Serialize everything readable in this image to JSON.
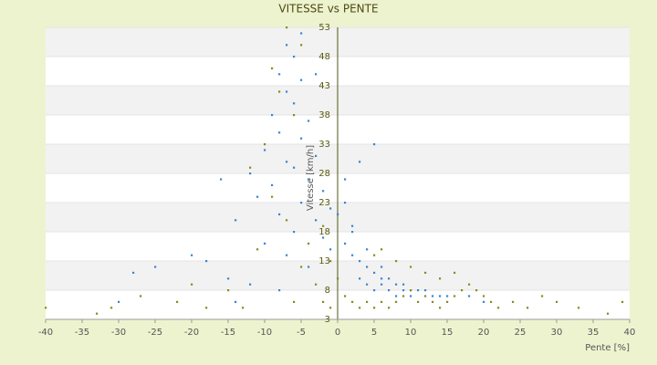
{
  "chart_data": {
    "type": "scatter",
    "title": "VITESSE vs PENTE",
    "x_label": "Pente [%]",
    "y_label": "Vitesse [km/h]",
    "xlim": [
      -40,
      40
    ],
    "xticks": [
      -40,
      -35,
      -30,
      -25,
      -20,
      -15,
      -10,
      -5,
      0,
      5,
      10,
      15,
      20,
      25,
      30,
      35,
      40
    ],
    "ylim": [
      3,
      53
    ],
    "yticks": [
      3,
      8,
      13,
      18,
      23,
      28,
      33,
      38,
      43,
      48,
      53
    ],
    "grid": true,
    "series": [
      {
        "color": "#3a86d0",
        "x": [
          -7,
          -6,
          -8,
          -5,
          -7,
          -6,
          -9,
          -4,
          -8,
          -5,
          -10,
          -3,
          -7,
          -6,
          -12,
          -4,
          -9,
          -2,
          -16,
          -11,
          -5,
          -1,
          -8,
          -14,
          -3,
          0,
          1,
          2,
          -6,
          -10,
          -2,
          -20,
          -18,
          -25,
          -28,
          -15,
          -12,
          -7,
          -4,
          -1,
          1,
          2,
          3,
          4,
          5,
          6,
          7,
          8,
          9,
          10,
          11,
          12,
          13,
          14,
          15,
          3,
          4,
          5,
          6,
          7,
          8,
          9,
          10,
          6,
          4,
          2,
          3,
          1,
          5,
          -3,
          -5,
          18,
          20,
          -8,
          -14,
          -30
        ],
        "values": [
          50,
          48,
          45,
          44,
          42,
          40,
          38,
          37,
          35,
          34,
          32,
          31,
          30,
          29,
          28,
          27,
          26,
          25,
          27,
          24,
          23,
          22,
          21,
          20,
          20,
          21,
          23,
          19,
          18,
          16,
          17,
          14,
          13,
          12,
          11,
          10,
          9,
          14,
          12,
          15,
          16,
          14,
          13,
          12,
          11,
          10,
          10,
          9,
          9,
          8,
          8,
          8,
          7,
          7,
          7,
          10,
          9,
          8,
          9,
          8,
          7,
          8,
          7,
          12,
          15,
          18,
          30,
          27,
          33,
          45,
          52,
          7,
          6,
          8,
          6,
          6
        ]
      },
      {
        "color": "#8a8a1e",
        "x": [
          -7,
          -5,
          -9,
          -8,
          -6,
          -10,
          -12,
          -9,
          -7,
          -11,
          -5,
          -3,
          -2,
          -1,
          -33,
          -40,
          -31,
          -27,
          -22,
          -18,
          -13,
          -6,
          0,
          1,
          2,
          3,
          4,
          5,
          6,
          7,
          8,
          9,
          10,
          11,
          12,
          13,
          14,
          15,
          16,
          17,
          18,
          19,
          20,
          21,
          22,
          24,
          26,
          28,
          30,
          33,
          37,
          39,
          5,
          6,
          8,
          10,
          12,
          14,
          16,
          -15,
          -20,
          -4,
          -2,
          -1
        ],
        "values": [
          53,
          50,
          46,
          42,
          38,
          33,
          29,
          24,
          20,
          15,
          12,
          9,
          6,
          5,
          4,
          5,
          5,
          7,
          6,
          5,
          5,
          6,
          10,
          7,
          6,
          5,
          6,
          5,
          6,
          5,
          6,
          7,
          8,
          6,
          7,
          6,
          5,
          6,
          7,
          8,
          9,
          8,
          7,
          6,
          5,
          6,
          5,
          7,
          6,
          5,
          4,
          6,
          14,
          15,
          13,
          12,
          11,
          10,
          11,
          8,
          9,
          16,
          19,
          13
        ]
      }
    ]
  }
}
